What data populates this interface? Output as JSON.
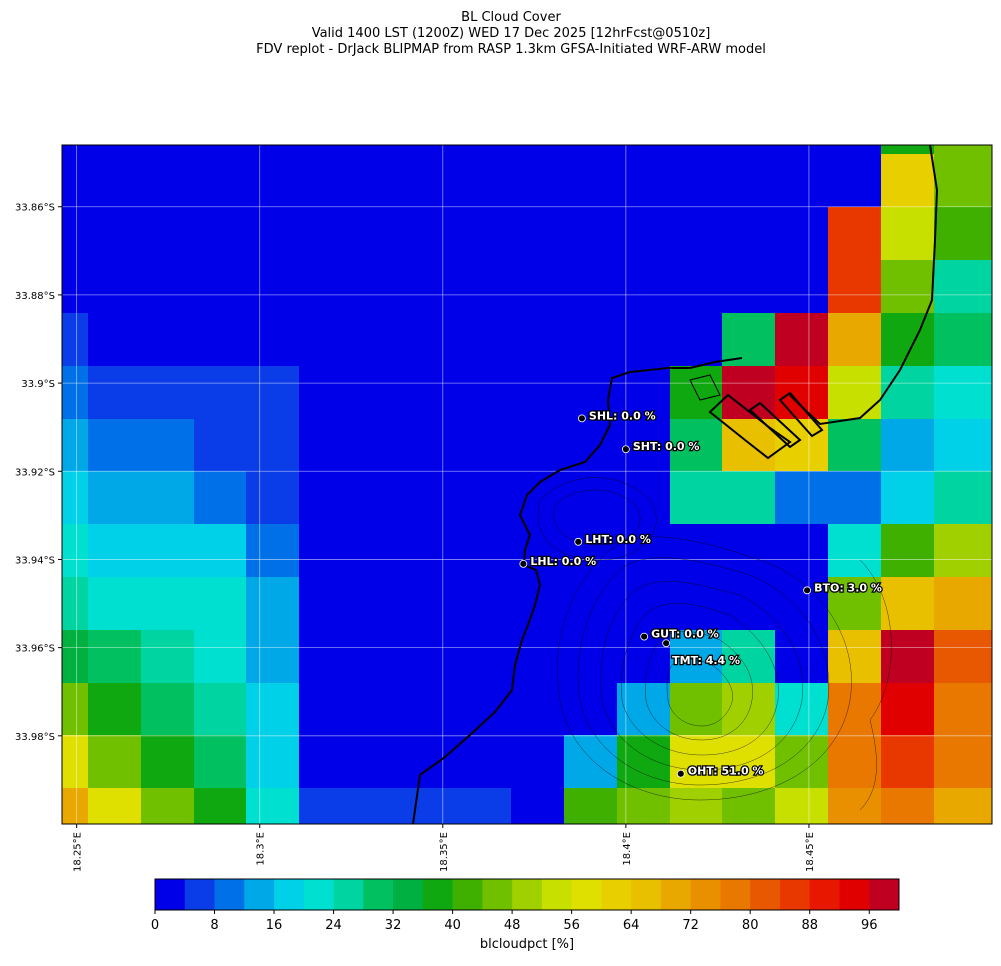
{
  "chart_data": {
    "type": "map",
    "title": "BL Cloud Cover",
    "subtitle": "Valid 1400 LST (1200Z) WED 17 Dec 2025 [12hrFcst@0510z]",
    "caption": "FDV replot - DrJack BLIPMAP from RASP 1.3km GFSA-Initiated WRF-ARW model",
    "xlim": [
      18.246,
      18.5
    ],
    "ylim": [
      -34.0,
      -33.846
    ],
    "xticks": [
      {
        "value": 18.25,
        "label": "18.25°E"
      },
      {
        "value": 18.3,
        "label": "18.3°E"
      },
      {
        "value": 18.35,
        "label": "18.35°E"
      },
      {
        "value": 18.4,
        "label": "18.4°E"
      },
      {
        "value": 18.45,
        "label": "18.45°E"
      }
    ],
    "yticks": [
      {
        "value": -33.86,
        "label": "33.86°S"
      },
      {
        "value": -33.88,
        "label": "33.88°S"
      },
      {
        "value": -33.9,
        "label": "33.9°S"
      },
      {
        "value": -33.92,
        "label": "33.92°S"
      },
      {
        "value": -33.94,
        "label": "33.94°S"
      },
      {
        "value": -33.96,
        "label": "33.96°S"
      },
      {
        "value": -33.98,
        "label": "33.98°S"
      }
    ],
    "grid": true,
    "cells": [
      [
        2,
        2,
        2,
        2,
        2,
        2,
        2,
        2,
        2,
        2,
        2,
        2,
        2,
        2,
        2,
        2,
        38,
        46
      ],
      [
        2,
        2,
        2,
        2,
        2,
        2,
        2,
        2,
        2,
        2,
        2,
        2,
        2,
        2,
        2,
        2,
        62,
        46
      ],
      [
        2,
        2,
        2,
        2,
        2,
        2,
        2,
        2,
        2,
        2,
        2,
        2,
        2,
        2,
        2,
        86,
        54,
        42
      ],
      [
        2,
        2,
        2,
        2,
        2,
        2,
        2,
        2,
        2,
        2,
        2,
        2,
        2,
        2,
        2,
        86,
        46,
        26
      ],
      [
        6,
        2,
        2,
        2,
        2,
        2,
        2,
        2,
        2,
        2,
        2,
        2,
        2,
        30,
        98,
        70,
        38,
        30
      ],
      [
        10,
        6,
        6,
        6,
        6,
        2,
        2,
        2,
        2,
        2,
        2,
        2,
        38,
        98,
        94,
        54,
        26,
        22
      ],
      [
        14,
        10,
        10,
        6,
        6,
        2,
        2,
        2,
        2,
        2,
        2,
        2,
        30,
        66,
        62,
        30,
        14,
        18
      ],
      [
        18,
        14,
        14,
        10,
        6,
        2,
        2,
        2,
        2,
        2,
        2,
        2,
        26,
        26,
        10,
        10,
        18,
        26
      ],
      [
        22,
        18,
        18,
        18,
        10,
        2,
        2,
        2,
        2,
        2,
        2,
        2,
        2,
        2,
        2,
        22,
        42,
        50
      ],
      [
        26,
        22,
        22,
        22,
        14,
        2,
        2,
        2,
        2,
        2,
        2,
        2,
        2,
        2,
        2,
        46,
        66,
        70
      ],
      [
        34,
        30,
        26,
        22,
        14,
        2,
        2,
        2,
        2,
        2,
        2,
        2,
        14,
        26,
        2,
        64,
        98,
        82
      ],
      [
        46,
        38,
        30,
        26,
        18,
        2,
        2,
        2,
        2,
        2,
        2,
        14,
        46,
        50,
        22,
        78,
        94,
        78
      ],
      [
        58,
        46,
        38,
        30,
        18,
        2,
        2,
        2,
        2,
        2,
        14,
        38,
        58,
        58,
        46,
        78,
        86,
        78
      ],
      [
        70,
        58,
        46,
        38,
        22,
        6,
        6,
        6,
        6,
        2,
        42,
        46,
        50,
        46,
        54,
        74,
        78,
        70
      ]
    ],
    "colorbar": {
      "label": "blcloudpct [%]",
      "clim": [
        0,
        100
      ],
      "colors": [
        "#0000e8",
        "#0a3ce8",
        "#0070e8",
        "#00a8e8",
        "#00d0e8",
        "#00e0d0",
        "#00d4a0",
        "#00c060",
        "#00b040",
        "#10a810",
        "#40b000",
        "#70c000",
        "#a0d000",
        "#c8e000",
        "#e0e000",
        "#e8d000",
        "#e8c000",
        "#e8a800",
        "#e89000",
        "#e87800",
        "#e85800",
        "#e83800",
        "#e81800",
        "#e00000",
        "#c00020"
      ],
      "ticks": [
        0,
        8,
        16,
        24,
        32,
        40,
        48,
        56,
        64,
        72,
        80,
        88,
        96
      ]
    },
    "stations": [
      {
        "label": "SHL: 0.0 %",
        "lon": 18.388,
        "lat": -33.908
      },
      {
        "label": "SHT: 0.0 %",
        "lon": 18.4,
        "lat": -33.915
      },
      {
        "label": "LHT: 0.0 %",
        "lon": 18.387,
        "lat": -33.936
      },
      {
        "label": "LHL: 0.0 %",
        "lon": 18.372,
        "lat": -33.941
      },
      {
        "label": "BTO: 3.0 %",
        "lon": 18.4495,
        "lat": -33.947
      },
      {
        "label": "GUT: 0.0 %",
        "lon": 18.405,
        "lat": -33.9575
      },
      {
        "label": "TMT: 4.4 %",
        "lon": 18.411,
        "lat": -33.959
      },
      {
        "label": "OHT: 51.0 %",
        "lon": 18.415,
        "lat": -33.9886
      }
    ]
  }
}
